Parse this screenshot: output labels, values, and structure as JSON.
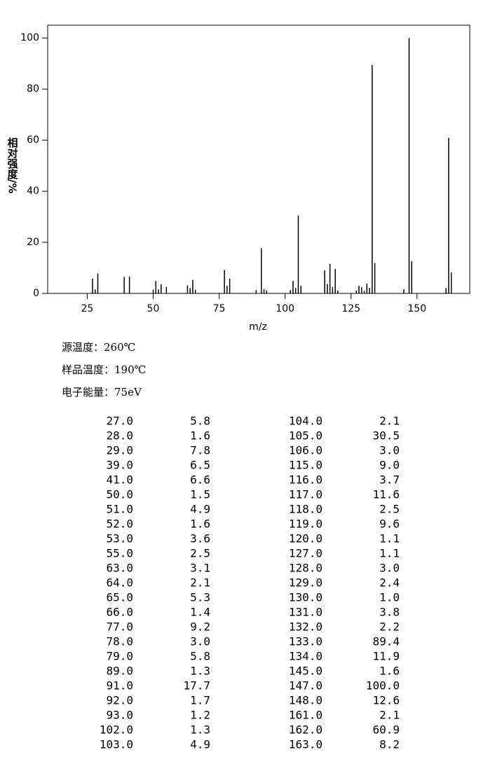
{
  "chart_data": {
    "type": "stem",
    "xlabel": "m/z",
    "ylabel": "相对强度/%",
    "x": [
      27,
      28,
      29,
      39,
      41,
      50,
      51,
      52,
      53,
      55,
      63,
      64,
      65,
      66,
      77,
      78,
      79,
      89,
      91,
      92,
      93,
      102,
      103,
      104,
      105,
      106,
      115,
      116,
      117,
      118,
      119,
      120,
      127,
      128,
      129,
      130,
      131,
      132,
      133,
      134,
      145,
      147,
      148,
      161,
      162,
      163
    ],
    "values": [
      5.8,
      1.6,
      7.8,
      6.5,
      6.6,
      1.5,
      4.9,
      1.6,
      3.6,
      2.5,
      3.1,
      2.1,
      5.3,
      1.4,
      9.2,
      3.0,
      5.8,
      1.3,
      17.7,
      1.7,
      1.2,
      1.3,
      4.9,
      2.1,
      30.5,
      3.0,
      9.0,
      3.7,
      11.6,
      2.5,
      9.6,
      1.1,
      1.1,
      3.0,
      2.4,
      1.0,
      3.8,
      2.2,
      89.4,
      11.9,
      1.6,
      100.0,
      12.6,
      2.1,
      60.9,
      8.2
    ],
    "color": "#000000",
    "xlim": [
      10,
      170
    ],
    "ylim": [
      0,
      105
    ],
    "xticks": [
      25,
      50,
      75,
      100,
      125,
      150
    ],
    "yticks": [
      0,
      20,
      40,
      60,
      80,
      100
    ]
  },
  "conditions": [
    "源温度：260℃",
    "样品温度：190℃",
    "电子能量：75eV"
  ],
  "table": {
    "rows": [
      [
        "27.0",
        "5.8"
      ],
      [
        "28.0",
        "1.6"
      ],
      [
        "29.0",
        "7.8"
      ],
      [
        "39.0",
        "6.5"
      ],
      [
        "41.0",
        "6.6"
      ],
      [
        "50.0",
        "1.5"
      ],
      [
        "51.0",
        "4.9"
      ],
      [
        "52.0",
        "1.6"
      ],
      [
        "53.0",
        "3.6"
      ],
      [
        "55.0",
        "2.5"
      ],
      [
        "63.0",
        "3.1"
      ],
      [
        "64.0",
        "2.1"
      ],
      [
        "65.0",
        "5.3"
      ],
      [
        "66.0",
        "1.4"
      ],
      [
        "77.0",
        "9.2"
      ],
      [
        "78.0",
        "3.0"
      ],
      [
        "79.0",
        "5.8"
      ],
      [
        "89.0",
        "1.3"
      ],
      [
        "91.0",
        "17.7"
      ],
      [
        "92.0",
        "1.7"
      ],
      [
        "93.0",
        "1.2"
      ],
      [
        "102.0",
        "1.3"
      ],
      [
        "103.0",
        "4.9"
      ],
      [
        "104.0",
        "2.1"
      ],
      [
        "105.0",
        "30.5"
      ],
      [
        "106.0",
        "3.0"
      ],
      [
        "115.0",
        "9.0"
      ],
      [
        "116.0",
        "3.7"
      ],
      [
        "117.0",
        "11.6"
      ],
      [
        "118.0",
        "2.5"
      ],
      [
        "119.0",
        "9.6"
      ],
      [
        "120.0",
        "1.1"
      ],
      [
        "127.0",
        "1.1"
      ],
      [
        "128.0",
        "3.0"
      ],
      [
        "129.0",
        "2.4"
      ],
      [
        "130.0",
        "1.0"
      ],
      [
        "131.0",
        "3.8"
      ],
      [
        "132.0",
        "2.2"
      ],
      [
        "133.0",
        "89.4"
      ],
      [
        "134.0",
        "11.9"
      ],
      [
        "145.0",
        "1.6"
      ],
      [
        "147.0",
        "100.0"
      ],
      [
        "148.0",
        "12.6"
      ],
      [
        "161.0",
        "2.1"
      ],
      [
        "162.0",
        "60.9"
      ],
      [
        "163.0",
        "8.2"
      ]
    ]
  }
}
